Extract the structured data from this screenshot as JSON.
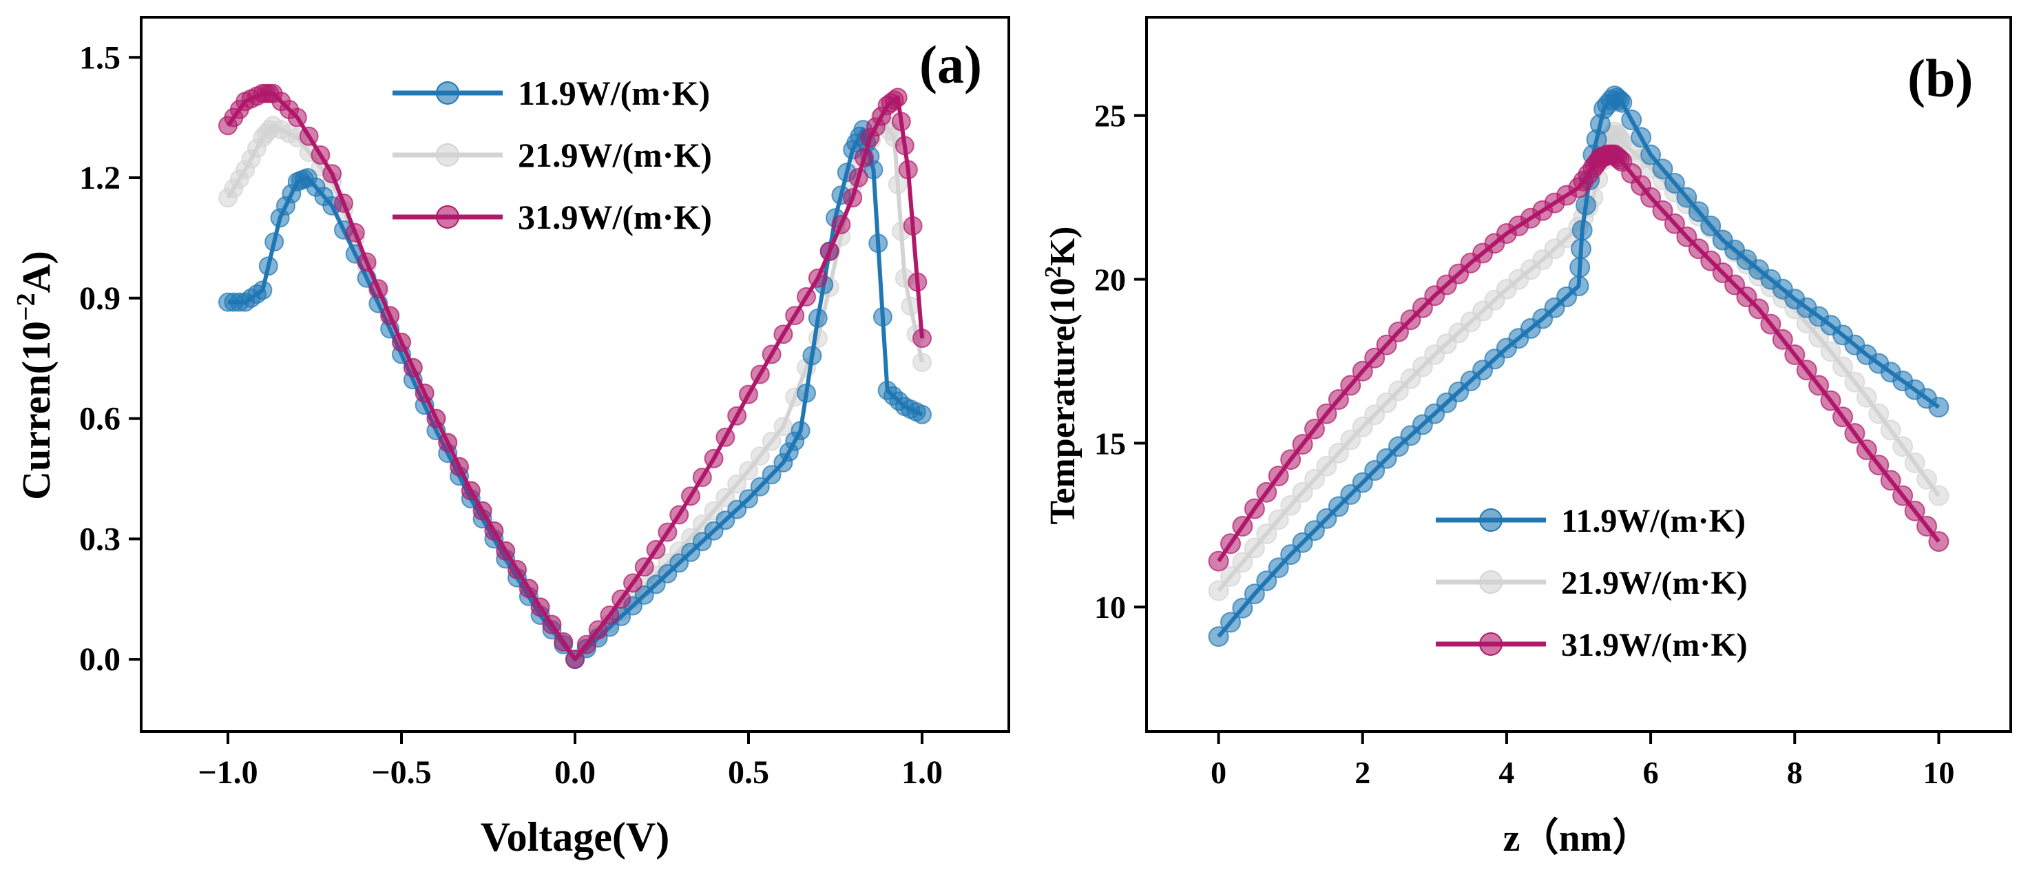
{
  "figure": {
    "label_a": "(a)",
    "label_b": "(b)"
  },
  "colors": {
    "s1": "#1f77b4",
    "s2": "#d3d3d3",
    "s3": "#b0186a"
  },
  "chart_data": [
    {
      "id": "a",
      "type": "line",
      "panel_label": "(a)",
      "xlabel": "Voltage(V)",
      "ylabel_main": "Curren(10",
      "ylabel_sup": "−2",
      "ylabel_tail": "A)",
      "xlim": [
        -1.25,
        1.25
      ],
      "ylim": [
        -0.18,
        1.6
      ],
      "xticks": [
        -1.0,
        -0.5,
        0.0,
        0.5,
        1.0
      ],
      "xtick_labels": [
        "−1.0",
        "−0.5",
        "0.0",
        "0.5",
        "1.0"
      ],
      "yticks": [
        0.0,
        0.3,
        0.6,
        0.9,
        1.2,
        1.5
      ],
      "ytick_labels": [
        "0.0",
        "0.3",
        "0.6",
        "0.9",
        "1.2",
        "1.5"
      ],
      "legend_position": "top-center",
      "series": [
        {
          "name": "11.9W/(m·K)",
          "x": [
            -1.0,
            -0.95,
            -0.9,
            -0.85,
            -0.8,
            -0.77,
            -0.7,
            -0.6,
            -0.5,
            -0.4,
            -0.3,
            -0.2,
            -0.1,
            0.0,
            0.1,
            0.2,
            0.3,
            0.4,
            0.5,
            0.6,
            0.65,
            0.7,
            0.75,
            0.8,
            0.83,
            0.86,
            0.9,
            0.95,
            1.0
          ],
          "y": [
            0.89,
            0.89,
            0.92,
            1.1,
            1.19,
            1.2,
            1.13,
            0.95,
            0.76,
            0.57,
            0.4,
            0.25,
            0.11,
            0.0,
            0.08,
            0.16,
            0.24,
            0.32,
            0.4,
            0.49,
            0.57,
            0.85,
            1.1,
            1.27,
            1.32,
            1.22,
            0.67,
            0.63,
            0.61
          ]
        },
        {
          "name": "21.9W/(m·K)",
          "x": [
            -1.0,
            -0.95,
            -0.9,
            -0.87,
            -0.8,
            -0.7,
            -0.6,
            -0.5,
            -0.4,
            -0.3,
            -0.2,
            -0.1,
            0.0,
            0.1,
            0.2,
            0.3,
            0.4,
            0.5,
            0.6,
            0.7,
            0.8,
            0.88,
            0.92,
            0.95,
            1.0
          ],
          "y": [
            1.15,
            1.22,
            1.3,
            1.33,
            1.3,
            1.19,
            0.98,
            0.79,
            0.6,
            0.42,
            0.27,
            0.13,
            0.0,
            0.09,
            0.18,
            0.27,
            0.37,
            0.47,
            0.58,
            0.8,
            1.18,
            1.35,
            1.3,
            0.95,
            0.74
          ]
        },
        {
          "name": "31.9W/(m·K)",
          "x": [
            -1.0,
            -0.95,
            -0.9,
            -0.87,
            -0.8,
            -0.7,
            -0.6,
            -0.5,
            -0.4,
            -0.3,
            -0.2,
            -0.1,
            0.0,
            0.1,
            0.2,
            0.3,
            0.4,
            0.5,
            0.6,
            0.7,
            0.8,
            0.85,
            0.9,
            0.93,
            0.96,
            1.0
          ],
          "y": [
            1.33,
            1.39,
            1.41,
            1.41,
            1.35,
            1.21,
            0.99,
            0.79,
            0.6,
            0.42,
            0.27,
            0.13,
            0.0,
            0.11,
            0.23,
            0.36,
            0.5,
            0.66,
            0.81,
            0.95,
            1.15,
            1.3,
            1.38,
            1.4,
            1.22,
            0.8
          ]
        }
      ]
    },
    {
      "id": "b",
      "type": "line",
      "panel_label": "(b)",
      "xlabel": "z（nm）",
      "ylabel_main": "Temperature(10",
      "ylabel_sup": "2",
      "ylabel_tail": "K)",
      "xlim": [
        -1.0,
        11.0
      ],
      "ylim": [
        6.2,
        28.0
      ],
      "xticks": [
        0,
        2,
        4,
        6,
        8,
        10
      ],
      "xtick_labels": [
        "0",
        "2",
        "4",
        "6",
        "8",
        "10"
      ],
      "yticks": [
        10,
        15,
        20,
        25
      ],
      "ytick_labels": [
        "10",
        "15",
        "20",
        "25"
      ],
      "legend_position": "bottom-center",
      "series": [
        {
          "name": "11.9W/(m·K)",
          "x": [
            0,
            0.5,
            1,
            1.5,
            2,
            2.5,
            3,
            3.5,
            4,
            4.5,
            5.0,
            5.05,
            5.2,
            5.35,
            5.5,
            5.6,
            6,
            6.5,
            7,
            7.5,
            8,
            8.5,
            9,
            9.5,
            10
          ],
          "y": [
            9.1,
            10.4,
            11.6,
            12.7,
            13.8,
            14.9,
            15.9,
            16.9,
            17.9,
            18.8,
            19.8,
            21.5,
            23.8,
            25.2,
            25.6,
            25.4,
            23.8,
            22.5,
            21.2,
            20.3,
            19.4,
            18.6,
            17.7,
            16.9,
            16.1
          ]
        },
        {
          "name": "21.9W/(m·K)",
          "x": [
            0,
            0.5,
            1,
            1.5,
            2,
            2.5,
            3,
            3.5,
            4,
            4.5,
            5.0,
            5.2,
            5.4,
            5.5,
            5.6,
            6,
            6.5,
            7,
            7.5,
            8,
            8.5,
            9,
            9.5,
            10
          ],
          "y": [
            10.5,
            11.8,
            13.1,
            14.3,
            15.5,
            16.6,
            17.7,
            18.7,
            19.7,
            20.6,
            21.6,
            22.5,
            24.2,
            24.5,
            24.2,
            23.4,
            22.3,
            21.2,
            20.1,
            19.1,
            17.8,
            16.4,
            14.9,
            13.4
          ]
        },
        {
          "name": "31.9W/(m·K)",
          "x": [
            0,
            0.5,
            1,
            1.5,
            2,
            2.5,
            3,
            3.5,
            4,
            4.5,
            5.0,
            5.2,
            5.3,
            5.4,
            5.5,
            5.6,
            6,
            6.5,
            7,
            7.5,
            8,
            8.5,
            9,
            9.5,
            10
          ],
          "y": [
            11.4,
            13.0,
            14.5,
            15.9,
            17.2,
            18.4,
            19.5,
            20.5,
            21.4,
            22.1,
            22.8,
            23.4,
            23.7,
            23.8,
            23.8,
            23.6,
            22.5,
            21.3,
            20.2,
            19.1,
            17.7,
            16.3,
            14.8,
            13.4,
            12.0
          ]
        }
      ]
    }
  ]
}
